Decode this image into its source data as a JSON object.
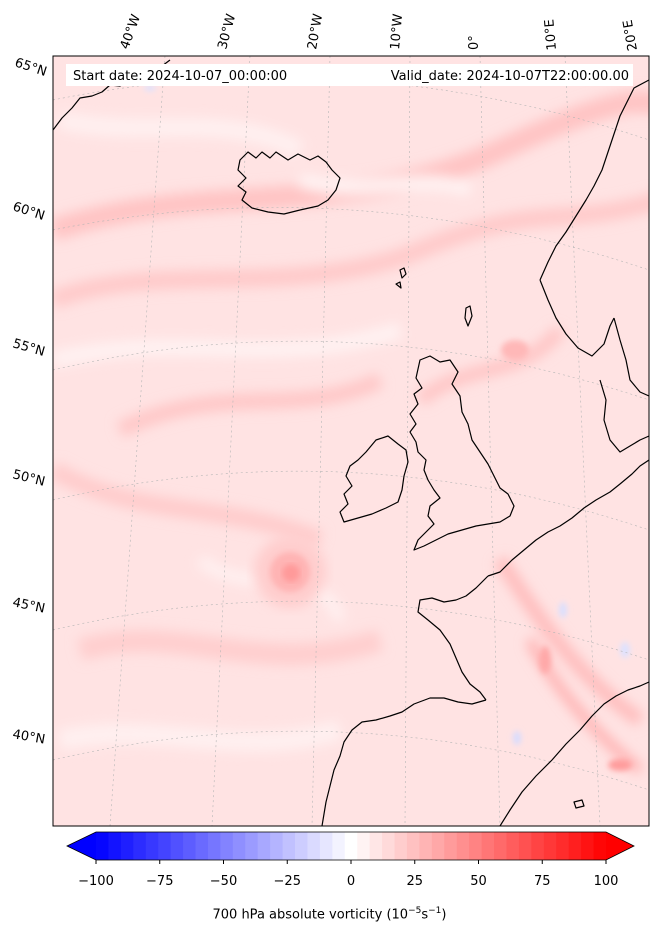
{
  "header": {
    "start_date": "Start date: 2024-10-07_00:00:00",
    "valid_date": "Valid_date: 2024-10-07T22:00:00.00"
  },
  "map": {
    "lon_labels": [
      "40°W",
      "30°W",
      "20°W",
      "10°W",
      "0°",
      "10°E",
      "20°E"
    ],
    "lat_labels": [
      "65°N",
      "60°N",
      "55°N",
      "50°N",
      "45°N",
      "40°N"
    ],
    "field_colors": {
      "low": "#0000ff",
      "zero": "#ffffff",
      "high": "#ff0000",
      "background": "#ffe4e4"
    }
  },
  "colorbar": {
    "ticks": [
      "−100",
      "−75",
      "−50",
      "−25",
      "0",
      "25",
      "50",
      "75",
      "100"
    ],
    "vmin": -100,
    "vmax": 100,
    "levels": 41,
    "label_main": "700 hPa absolute vorticity (10",
    "label_exp1": "−5",
    "label_mid": "s",
    "label_exp2": "−1",
    "label_end": ")"
  }
}
